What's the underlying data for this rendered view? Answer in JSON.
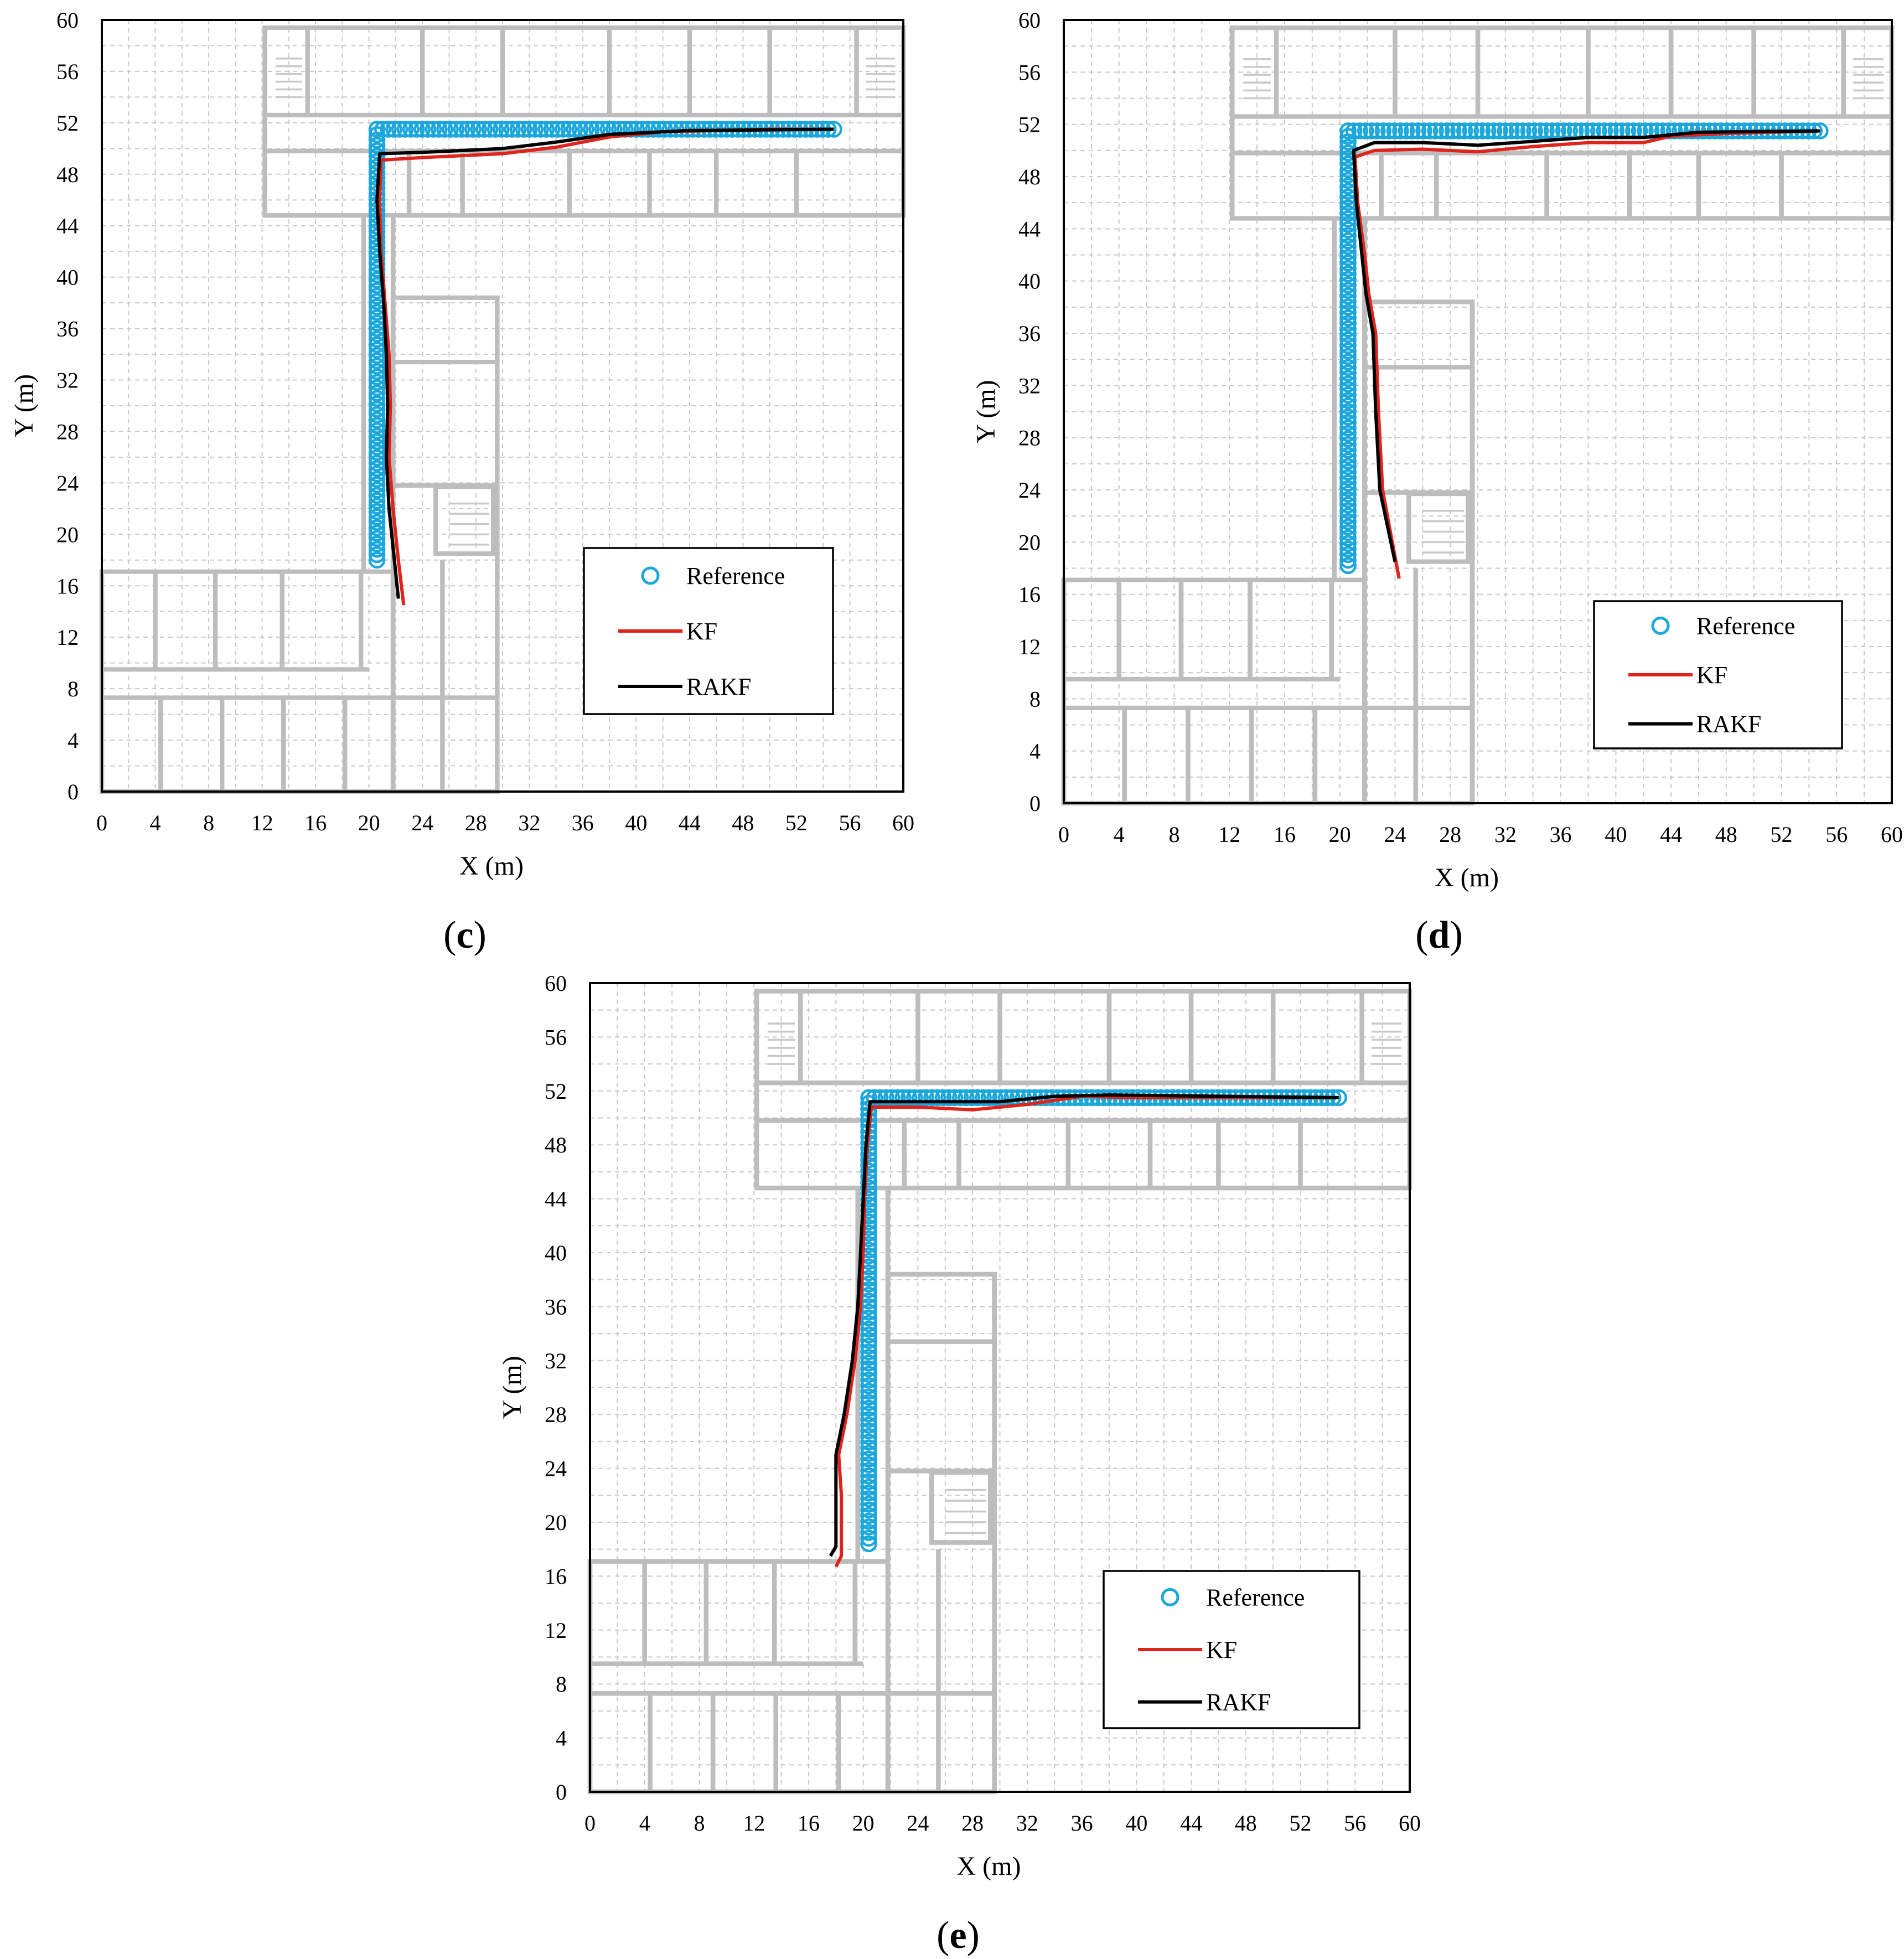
{
  "colors": {
    "reference": "#1aa7dc",
    "kf": "#e0231b",
    "rakf": "#000000",
    "grid": "#c8c8c8",
    "floorplan": "#bdbdbd"
  },
  "chart_data": [
    {
      "type": "line",
      "panel": "(c)",
      "panel_open": "(",
      "panel_letter": "c",
      "panel_close": ")",
      "xlabel": "X (m)",
      "ylabel": "Y (m)",
      "xlim": [
        0,
        60
      ],
      "ylim": [
        0,
        60
      ],
      "xticks": [
        "0",
        "4",
        "8",
        "12",
        "16",
        "20",
        "24",
        "28",
        "32",
        "36",
        "40",
        "44",
        "48",
        "52",
        "56",
        "60"
      ],
      "yticks": [
        "0",
        "4",
        "8",
        "12",
        "16",
        "20",
        "24",
        "28",
        "32",
        "36",
        "40",
        "44",
        "48",
        "52",
        "56",
        "60"
      ],
      "grid": true,
      "legend_position": "lower-right",
      "legend": [
        "Reference",
        "KF",
        "RAKF"
      ],
      "series": [
        {
          "name": "Reference",
          "marker": "circle",
          "segments": [
            [
              [
                20.6,
                18.0
              ],
              [
                20.6,
                51.5
              ],
              [
                54.8,
                51.5
              ]
            ]
          ]
        },
        {
          "name": "KF",
          "points": [
            [
              22.6,
              14.5
            ],
            [
              22.2,
              18
            ],
            [
              21.8,
              22
            ],
            [
              21.5,
              26
            ],
            [
              21.6,
              30
            ],
            [
              21.5,
              34
            ],
            [
              21.2,
              38
            ],
            [
              20.9,
              42
            ],
            [
              20.8,
              46
            ],
            [
              20.9,
              49.1
            ],
            [
              24,
              49.3
            ],
            [
              30,
              49.6
            ],
            [
              34,
              50.1
            ],
            [
              38,
              50.9
            ],
            [
              42,
              51.3
            ],
            [
              50,
              51.5
            ],
            [
              54.8,
              51.5
            ]
          ]
        },
        {
          "name": "RAKF",
          "points": [
            [
              22.2,
              15.0
            ],
            [
              21.9,
              18
            ],
            [
              21.5,
              22
            ],
            [
              21.3,
              26
            ],
            [
              21.4,
              30
            ],
            [
              21.3,
              34
            ],
            [
              21.1,
              38
            ],
            [
              20.8,
              42
            ],
            [
              20.6,
              46
            ],
            [
              20.8,
              49.6
            ],
            [
              24,
              49.7
            ],
            [
              30,
              50.0
            ],
            [
              34,
              50.5
            ],
            [
              38,
              51.1
            ],
            [
              44,
              51.4
            ],
            [
              54.8,
              51.5
            ]
          ]
        }
      ]
    },
    {
      "type": "line",
      "panel": "(d)",
      "panel_open": "(",
      "panel_letter": "d",
      "panel_close": ")",
      "xlabel": "X (m)",
      "ylabel": "Y (m)",
      "xlim": [
        0,
        60
      ],
      "ylim": [
        0,
        60
      ],
      "xticks": [
        "0",
        "4",
        "8",
        "12",
        "16",
        "20",
        "24",
        "28",
        "32",
        "36",
        "40",
        "44",
        "48",
        "52",
        "56",
        "60"
      ],
      "yticks": [
        "0",
        "4",
        "8",
        "12",
        "16",
        "20",
        "24",
        "28",
        "32",
        "36",
        "40",
        "44",
        "48",
        "52",
        "56",
        "60"
      ],
      "grid": true,
      "legend_position": "lower-right",
      "legend": [
        "Reference",
        "KF",
        "RAKF"
      ],
      "series": [
        {
          "name": "Reference",
          "marker": "circle",
          "segments": [
            [
              [
                20.6,
                18.2
              ],
              [
                20.6,
                51.5
              ],
              [
                54.8,
                51.5
              ]
            ]
          ]
        },
        {
          "name": "KF",
          "points": [
            [
              24.3,
              17.2
            ],
            [
              23.8,
              20
            ],
            [
              23.1,
              24
            ],
            [
              22.8,
              30
            ],
            [
              22.6,
              36
            ],
            [
              22.1,
              39
            ],
            [
              21.8,
              42
            ],
            [
              21.3,
              46
            ],
            [
              21.1,
              49.5
            ],
            [
              22.5,
              50.0
            ],
            [
              26,
              50.1
            ],
            [
              30,
              49.9
            ],
            [
              34,
              50.3
            ],
            [
              38,
              50.6
            ],
            [
              42,
              50.6
            ],
            [
              44,
              51.1
            ],
            [
              48,
              51.3
            ],
            [
              54.8,
              51.5
            ]
          ]
        },
        {
          "name": "RAKF",
          "points": [
            [
              24.0,
              18.5
            ],
            [
              23.5,
              21
            ],
            [
              22.9,
              24
            ],
            [
              22.6,
              30
            ],
            [
              22.4,
              36
            ],
            [
              21.9,
              39
            ],
            [
              21.6,
              42
            ],
            [
              21.2,
              46
            ],
            [
              21.0,
              50.0
            ],
            [
              22.5,
              50.6
            ],
            [
              26,
              50.6
            ],
            [
              30,
              50.4
            ],
            [
              34,
              50.7
            ],
            [
              38,
              51.0
            ],
            [
              42,
              51.0
            ],
            [
              46,
              51.4
            ],
            [
              54.8,
              51.5
            ]
          ]
        }
      ]
    },
    {
      "type": "line",
      "panel": "(e)",
      "panel_open": "(",
      "panel_letter": "e",
      "panel_close": ")",
      "xlabel": "X (m)",
      "ylabel": "Y (m)",
      "xlim": [
        0,
        60
      ],
      "ylim": [
        0,
        60
      ],
      "xticks": [
        "0",
        "4",
        "8",
        "12",
        "16",
        "20",
        "24",
        "28",
        "32",
        "36",
        "40",
        "44",
        "48",
        "52",
        "56",
        "60"
      ],
      "yticks": [
        "0",
        "4",
        "8",
        "12",
        "16",
        "20",
        "24",
        "28",
        "32",
        "36",
        "40",
        "44",
        "48",
        "52",
        "56",
        "60"
      ],
      "grid": true,
      "legend_position": "lower-right",
      "legend": [
        "Reference",
        "KF",
        "RAKF"
      ],
      "series": [
        {
          "name": "Reference",
          "marker": "circle",
          "segments": [
            [
              [
                20.4,
                18.4
              ],
              [
                20.4,
                51.5
              ],
              [
                54.8,
                51.5
              ]
            ]
          ]
        },
        {
          "name": "KF",
          "points": [
            [
              18.0,
              16.7
            ],
            [
              18.4,
              17.5
            ],
            [
              18.4,
              22
            ],
            [
              18.2,
              25
            ],
            [
              18.8,
              28
            ],
            [
              19.4,
              32
            ],
            [
              19.8,
              36
            ],
            [
              20.0,
              40
            ],
            [
              20.1,
              44
            ],
            [
              20.3,
              48
            ],
            [
              20.6,
              50.8
            ],
            [
              24,
              50.8
            ],
            [
              28,
              50.6
            ],
            [
              32,
              51.0
            ],
            [
              36,
              51.6
            ],
            [
              40,
              51.5
            ],
            [
              54.8,
              51.5
            ]
          ]
        },
        {
          "name": "RAKF",
          "points": [
            [
              17.6,
              17.5
            ],
            [
              18.0,
              18.2
            ],
            [
              18.0,
              25
            ],
            [
              18.6,
              28
            ],
            [
              19.2,
              32
            ],
            [
              19.6,
              36
            ],
            [
              19.8,
              40
            ],
            [
              20.0,
              44
            ],
            [
              20.2,
              48
            ],
            [
              20.5,
              51.2
            ],
            [
              24,
              51.2
            ],
            [
              30,
              51.2
            ],
            [
              34,
              51.6
            ],
            [
              38,
              51.7
            ],
            [
              54.8,
              51.5
            ]
          ]
        }
      ]
    }
  ]
}
